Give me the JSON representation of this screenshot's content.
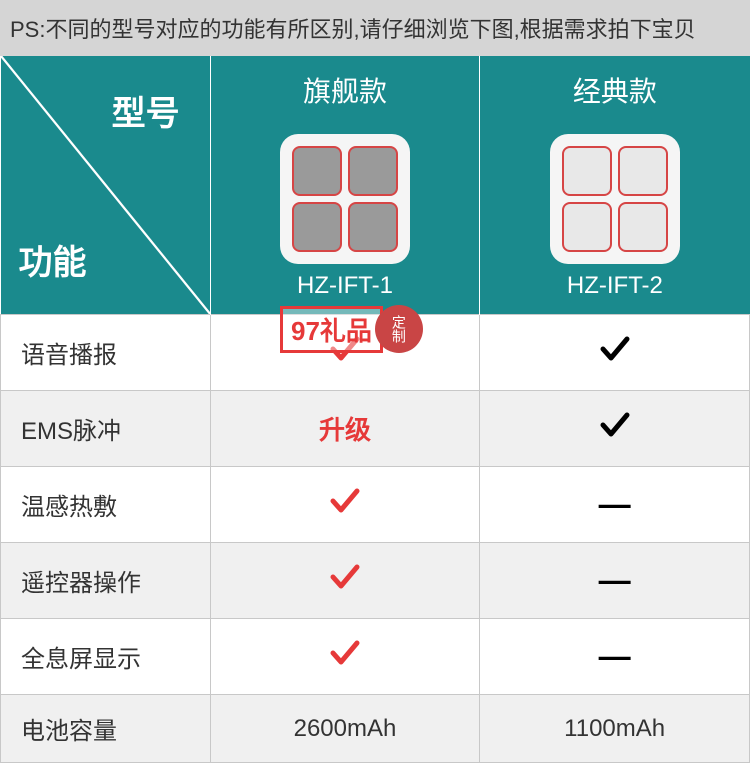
{
  "ps_note": "PS:不同的型号对应的功能有所区别,请仔细浏览下图,根据需求拍下宝贝",
  "header": {
    "col1": "旗舰款",
    "col2": "经典款",
    "diag_top": "型号",
    "diag_bot": "功能",
    "model1": "HZ-IFT-1",
    "model2": "HZ-IFT-2"
  },
  "colors": {
    "teal": "#1a8a8d",
    "red": "#e63939",
    "ps_bg": "#d5d5d5",
    "alt_row": "#f0f0f0",
    "border": "#c8c8c8"
  },
  "rows": [
    {
      "label": "语音播报",
      "v1": "check-red",
      "v2": "check-black"
    },
    {
      "label": "EMS脉冲",
      "v1": "upgrade",
      "v2": "check-black",
      "upgrade_text": "升级"
    },
    {
      "label": "温感热敷",
      "v1": "check-red",
      "v2": "dash"
    },
    {
      "label": "遥控器操作",
      "v1": "check-red",
      "v2": "dash"
    },
    {
      "label": "全息屏显示",
      "v1": "check-red",
      "v2": "dash"
    },
    {
      "label": "电池容量",
      "v1": "text",
      "v2": "text",
      "t1": "2600mAh",
      "t2": "1100mAh"
    }
  ],
  "dash_char": "—",
  "watermark": {
    "box": "97礼品",
    "seal": "定制"
  }
}
